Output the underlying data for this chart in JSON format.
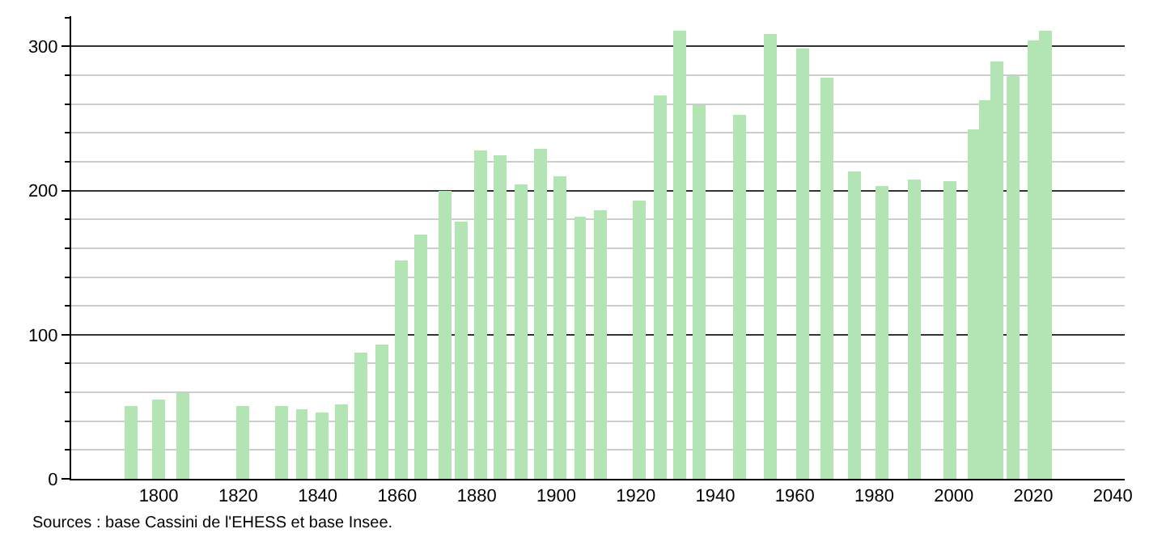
{
  "chart_data": {
    "type": "bar",
    "x": [
      1793,
      1800,
      1806,
      1821,
      1831,
      1836,
      1841,
      1846,
      1851,
      1856,
      1861,
      1866,
      1872,
      1876,
      1881,
      1886,
      1891,
      1896,
      1901,
      1906,
      1911,
      1921,
      1926,
      1931,
      1936,
      1946,
      1954,
      1962,
      1968,
      1975,
      1982,
      1990,
      1999,
      2005,
      2008,
      2011,
      2015,
      2020,
      2023
    ],
    "values": [
      50,
      55,
      59,
      51,
      51,
      48,
      46,
      52,
      87,
      93,
      152,
      170,
      200,
      178,
      228,
      224,
      204,
      229,
      210,
      182,
      186,
      193,
      266,
      311,
      259,
      253,
      309,
      299,
      278,
      213,
      203,
      208,
      206,
      242,
      263,
      290,
      279,
      304,
      311
    ],
    "color": "#b3e4b3",
    "xlim": [
      1778,
      2043
    ],
    "xticks": [
      1800,
      1820,
      1840,
      1860,
      1880,
      1900,
      1920,
      1940,
      1960,
      1980,
      2000,
      2020,
      2040
    ],
    "ylim": [
      0,
      321
    ],
    "yticks": [
      0,
      100,
      200,
      300
    ],
    "grid": "y",
    "annotations": [
      "Sources : base Cassini de l'EHESS et base Insee."
    ]
  }
}
